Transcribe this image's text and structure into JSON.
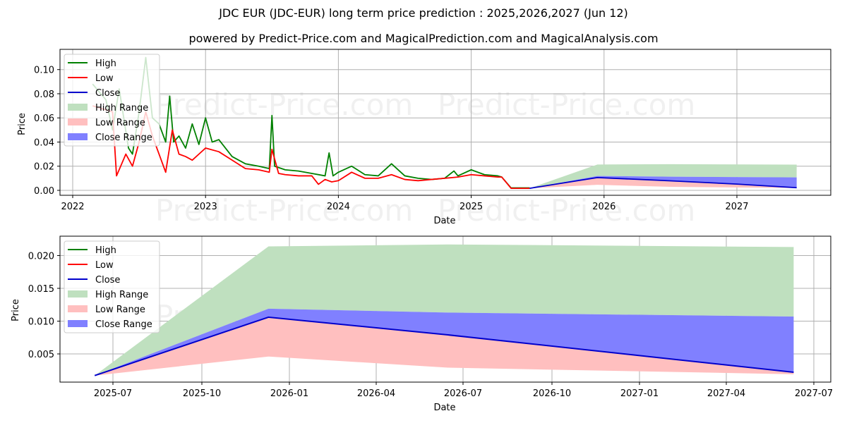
{
  "header": {
    "title": "JDC EUR (JDC-EUR) long term price prediction : 2025,2026,2027 (Jun 12)",
    "subtitle": "powered by Predict-Price.com and MagicalPrediction.com and MagicalAnalysis.com"
  },
  "watermark": "Predict-Price.com",
  "colors": {
    "high": "#008000",
    "low": "#ff0000",
    "close": "#0000cc",
    "high_range": "#bfe0bf",
    "low_range": "#ffbfbf",
    "close_range": "#8080ff",
    "grid": "#b0b0b0"
  },
  "legend": [
    "High",
    "Low",
    "Close",
    "High Range",
    "Low Range",
    "Close Range"
  ],
  "chart_data": [
    {
      "type": "line",
      "title": "JDC EUR (JDC-EUR) long term price prediction : 2025,2026,2027 (Jun 12)",
      "xlabel": "Date",
      "ylabel": "Price",
      "x_ticks": [
        "2022",
        "2023",
        "2024",
        "2025",
        "2026",
        "2027"
      ],
      "y_ticks": [
        "0.00",
        "0.02",
        "0.04",
        "0.06",
        "0.08",
        "0.10"
      ],
      "ylim": [
        -0.004,
        0.112
      ],
      "xlim": [
        2021.9,
        2027.7
      ],
      "grid": true,
      "legend_position": "upper left",
      "series": [
        {
          "name": "High",
          "x": [
            2022.15,
            2022.25,
            2022.3,
            2022.35,
            2022.42,
            2022.45,
            2022.5,
            2022.55,
            2022.6,
            2022.65,
            2022.7,
            2022.73,
            2022.76,
            2022.8,
            2022.85,
            2022.9,
            2022.95,
            2023.0,
            2023.05,
            2023.1,
            2023.15,
            2023.2,
            2023.3,
            2023.4,
            2023.48,
            2023.5,
            2023.52,
            2023.6,
            2023.7,
            2023.8,
            2023.9,
            2023.93,
            2023.96,
            2024.0,
            2024.1,
            2024.2,
            2024.3,
            2024.4,
            2024.5,
            2024.6,
            2024.7,
            2024.8,
            2024.87,
            2024.9,
            2025.0,
            2025.1,
            2025.2,
            2025.23,
            2025.3,
            2025.44
          ],
          "y": [
            0.088,
            0.075,
            0.05,
            0.084,
            0.035,
            0.03,
            0.065,
            0.11,
            0.06,
            0.055,
            0.04,
            0.078,
            0.04,
            0.045,
            0.035,
            0.055,
            0.038,
            0.06,
            0.04,
            0.042,
            0.035,
            0.028,
            0.022,
            0.02,
            0.018,
            0.062,
            0.02,
            0.017,
            0.016,
            0.014,
            0.012,
            0.031,
            0.012,
            0.015,
            0.02,
            0.013,
            0.012,
            0.022,
            0.012,
            0.01,
            0.009,
            0.01,
            0.016,
            0.012,
            0.017,
            0.013,
            0.012,
            0.011,
            0.002,
            0.002
          ]
        },
        {
          "name": "Low",
          "x": [
            2022.15,
            2022.3,
            2022.33,
            2022.4,
            2022.45,
            2022.5,
            2022.55,
            2022.6,
            2022.65,
            2022.7,
            2022.75,
            2022.8,
            2022.85,
            2022.9,
            2022.95,
            2023.0,
            2023.1,
            2023.2,
            2023.3,
            2023.4,
            2023.48,
            2023.5,
            2023.55,
            2023.6,
            2023.7,
            2023.8,
            2023.85,
            2023.9,
            2023.95,
            2024.0,
            2024.1,
            2024.2,
            2024.3,
            2024.4,
            2024.5,
            2024.6,
            2024.7,
            2024.8,
            2024.9,
            2025.0,
            2025.1,
            2025.2,
            2025.23,
            2025.3,
            2025.44
          ],
          "y": [
            0.07,
            0.065,
            0.012,
            0.03,
            0.02,
            0.04,
            0.065,
            0.045,
            0.03,
            0.015,
            0.05,
            0.03,
            0.028,
            0.025,
            0.03,
            0.035,
            0.032,
            0.025,
            0.018,
            0.017,
            0.015,
            0.034,
            0.014,
            0.013,
            0.012,
            0.012,
            0.005,
            0.009,
            0.007,
            0.008,
            0.015,
            0.01,
            0.01,
            0.013,
            0.009,
            0.008,
            0.009,
            0.01,
            0.011,
            0.013,
            0.012,
            0.011,
            0.011,
            0.0017,
            0.0017
          ]
        },
        {
          "name": "Close",
          "x": [
            2025.44,
            2025.95,
            2026.5,
            2027.0,
            2027.45
          ],
          "y": [
            0.0017,
            0.0106,
            0.0079,
            0.0052,
            0.0022
          ]
        }
      ],
      "ranges": [
        {
          "name": "High Range",
          "x": [
            2025.44,
            2025.95,
            2026.5,
            2027.45
          ],
          "lower": [
            0.0017,
            0.0119,
            0.0113,
            0.0107
          ],
          "upper": [
            0.0017,
            0.0214,
            0.0217,
            0.0213
          ]
        },
        {
          "name": "Low Range",
          "x": [
            2025.44,
            2025.95,
            2026.5,
            2027.45
          ],
          "lower": [
            0.0017,
            0.0046,
            0.0029,
            0.0019
          ],
          "upper": [
            0.0017,
            0.0106,
            0.0079,
            0.0022
          ]
        },
        {
          "name": "Close Range",
          "x": [
            2025.44,
            2025.95,
            2026.5,
            2027.45
          ],
          "lower": [
            0.0017,
            0.0106,
            0.0079,
            0.0022
          ],
          "upper": [
            0.0017,
            0.0119,
            0.0113,
            0.0107
          ]
        }
      ]
    },
    {
      "type": "line",
      "title": "",
      "xlabel": "Date",
      "ylabel": "Price",
      "x_ticks": [
        "2025-07",
        "2025-10",
        "2026-01",
        "2026-04",
        "2026-07",
        "2026-10",
        "2027-01",
        "2027-04",
        "2027-07"
      ],
      "y_ticks": [
        "0.005",
        "0.010",
        "0.015",
        "0.020"
      ],
      "ylim": [
        0.0006,
        0.0224
      ],
      "grid": true,
      "legend_position": "upper left",
      "series": [
        {
          "name": "Close",
          "x": [
            "2025-06-12",
            "2025-12-10",
            "2026-06-15",
            "2027-06-10"
          ],
          "y": [
            0.0017,
            0.0106,
            0.0079,
            0.0022
          ]
        }
      ],
      "ranges": [
        {
          "name": "High Range",
          "x": [
            "2025-06-12",
            "2025-12-10",
            "2026-06-15",
            "2027-06-10"
          ],
          "lower": [
            0.0017,
            0.0119,
            0.0113,
            0.0107
          ],
          "upper": [
            0.0017,
            0.0214,
            0.0217,
            0.0213
          ]
        },
        {
          "name": "Low Range",
          "x": [
            "2025-06-12",
            "2025-12-10",
            "2026-06-15",
            "2027-06-10"
          ],
          "lower": [
            0.0017,
            0.0046,
            0.0029,
            0.0019
          ],
          "upper": [
            0.0017,
            0.0106,
            0.0079,
            0.0022
          ]
        },
        {
          "name": "Close Range",
          "x": [
            "2025-06-12",
            "2025-12-10",
            "2026-06-15",
            "2027-06-10"
          ],
          "lower": [
            0.0017,
            0.0106,
            0.0079,
            0.0022
          ],
          "upper": [
            0.0017,
            0.0119,
            0.0113,
            0.0107
          ]
        }
      ]
    }
  ]
}
